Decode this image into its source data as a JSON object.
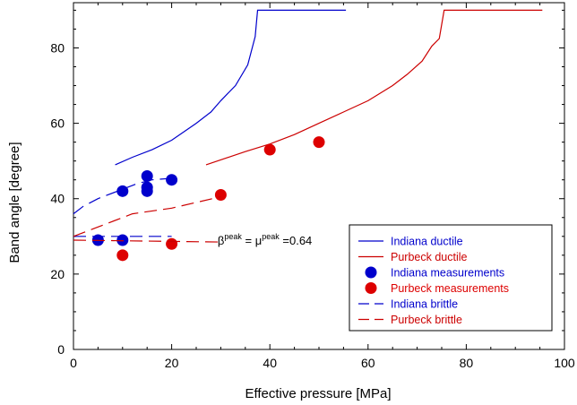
{
  "chart_data": {
    "type": "line",
    "xlabel": "Effective pressure [MPa]",
    "ylabel": "Band angle [degree]",
    "xlim": [
      0,
      100
    ],
    "ylim": [
      0,
      92
    ],
    "xticks": [
      0,
      20,
      40,
      60,
      80,
      100
    ],
    "yticks": [
      0,
      20,
      40,
      60,
      80
    ],
    "grid": false,
    "legend_position": "bottom-right",
    "annotation": {
      "beta": "β",
      "sup1": "peak",
      "mid": " = ",
      "mu": "μ",
      "sup2": "peak",
      "tail": " =0.64",
      "x": 29,
      "y": 29
    },
    "series": [
      {
        "name": "Indiana ductile",
        "kind": "line",
        "style": "solid",
        "color": "#0000cc",
        "points": [
          [
            8.5,
            49
          ],
          [
            12,
            51
          ],
          [
            16,
            53
          ],
          [
            20,
            55.5
          ],
          [
            25,
            60
          ],
          [
            28,
            63
          ],
          [
            30,
            66
          ],
          [
            33,
            70
          ],
          [
            35.5,
            75.5
          ],
          [
            37,
            83
          ],
          [
            37.5,
            90
          ],
          [
            55.5,
            90
          ]
        ]
      },
      {
        "name": "Purbeck ductile",
        "kind": "line",
        "style": "solid",
        "color": "#cc0000",
        "points": [
          [
            27,
            49
          ],
          [
            35,
            52.5
          ],
          [
            40,
            54.5
          ],
          [
            45,
            57
          ],
          [
            50,
            60
          ],
          [
            55,
            63
          ],
          [
            60,
            66
          ],
          [
            65,
            70
          ],
          [
            68,
            73
          ],
          [
            71,
            76.5
          ],
          [
            73,
            80.5
          ],
          [
            74.5,
            82.5
          ],
          [
            75.5,
            90
          ],
          [
            95.5,
            90
          ]
        ]
      },
      {
        "name": "Indiana measurements",
        "kind": "scatter",
        "color": "#0000cc",
        "points": [
          [
            5,
            29
          ],
          [
            10,
            29
          ],
          [
            10,
            42
          ],
          [
            15,
            42
          ],
          [
            15,
            43
          ],
          [
            15,
            46
          ],
          [
            20,
            45
          ]
        ]
      },
      {
        "name": "Purbeck measurements",
        "kind": "scatter",
        "color": "#dd0000",
        "points": [
          [
            10,
            25
          ],
          [
            20,
            28
          ],
          [
            30,
            41
          ],
          [
            40,
            53
          ],
          [
            50,
            55
          ]
        ]
      },
      {
        "name": "Indiana brittle",
        "kind": "line",
        "style": "dashed",
        "color": "#0000cc",
        "segments": [
          [
            [
              0,
              36
            ],
            [
              2,
              38
            ],
            [
              5,
              40
            ],
            [
              9,
              42
            ],
            [
              13,
              44
            ],
            [
              16,
              45
            ],
            [
              21,
              45.5
            ]
          ],
          [
            [
              0,
              30
            ],
            [
              20,
              30
            ]
          ]
        ]
      },
      {
        "name": "Purbeck brittle",
        "kind": "line",
        "style": "dashed",
        "color": "#cc0000",
        "segments": [
          [
            [
              0,
              30
            ],
            [
              5,
              32.5
            ],
            [
              12,
              36
            ],
            [
              20,
              37.5
            ],
            [
              30,
              40.5
            ]
          ],
          [
            [
              0,
              29
            ],
            [
              30,
              28.5
            ]
          ]
        ]
      }
    ]
  }
}
